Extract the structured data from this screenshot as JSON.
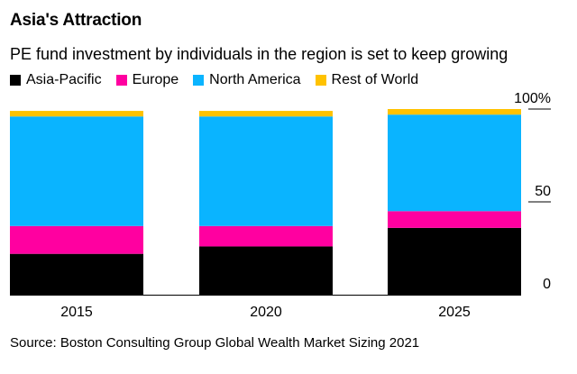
{
  "title": "Asia's Attraction",
  "subtitle": "PE fund investment by individuals in the region is set to keep growing",
  "source": "Source: Boston Consulting Group Global Wealth Market Sizing 2021",
  "colors": {
    "asia_pacific": "#000000",
    "europe": "#ff00a0",
    "north_america": "#0ab4ff",
    "rest_of_world": "#ffc200"
  },
  "chart_data": {
    "type": "bar",
    "stacked": true,
    "categories": [
      "2015",
      "2020",
      "2025"
    ],
    "series": [
      {
        "name": "Asia-Pacific",
        "color": "#000000",
        "values": [
          22,
          26,
          36
        ]
      },
      {
        "name": "Europe",
        "color": "#ff00a0",
        "values": [
          15,
          11,
          9
        ]
      },
      {
        "name": "North America",
        "color": "#0ab4ff",
        "values": [
          59,
          59,
          52
        ]
      },
      {
        "name": "Rest of World",
        "color": "#ffc200",
        "values": [
          3,
          3,
          3
        ]
      }
    ],
    "ylim": [
      0,
      100
    ],
    "yticks": [
      {
        "value": 100,
        "label": "100%"
      },
      {
        "value": 50,
        "label": "50"
      },
      {
        "value": 0,
        "label": "0"
      }
    ],
    "legend": "top-left"
  }
}
